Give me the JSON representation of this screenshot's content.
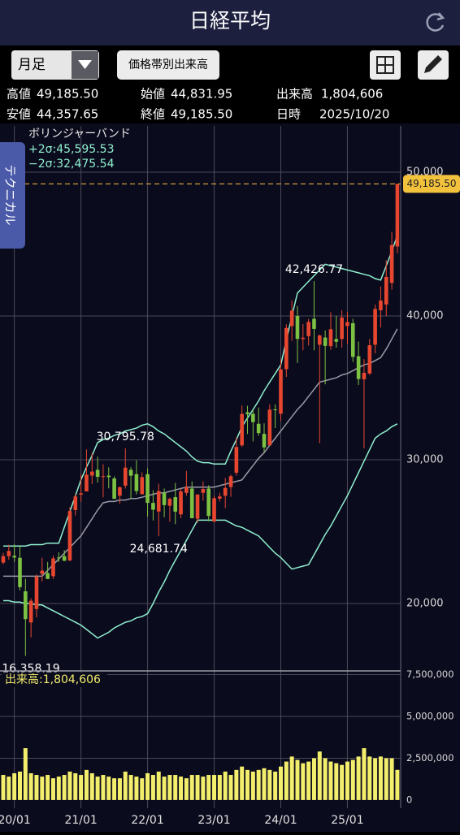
{
  "app": {
    "title": "日経平均",
    "period": "月足",
    "button": "価格帯別出来高",
    "side_tab": "テクニカル"
  },
  "quote": {
    "high_label": "高値",
    "high": "49,185.50",
    "open_label": "始値",
    "open": "44,831.95",
    "volume_label": "出来高",
    "volume": "1,804,606",
    "low_label": "安値",
    "low": "44,357.65",
    "close_label": "終値",
    "close": "49,185.50",
    "date_label": "日時",
    "date": "2025/10/20"
  },
  "chart_data": [
    {
      "type": "candlestick",
      "indicator": "ボリンジャーバンド",
      "up_color": "#e8472f",
      "down_color": "#7cc142",
      "open": [
        22850,
        23300,
        23320,
        23180,
        20850,
        18686,
        19620,
        22062,
        22121,
        21900,
        23200,
        23300,
        23000,
        26500,
        27575,
        27800,
        28900,
        29300,
        28800,
        28900,
        28700,
        27500,
        28200,
        29300,
        29000,
        27600,
        29000,
        27000,
        26400,
        27700,
        26800,
        27400,
        26200,
        27700,
        28000,
        25900,
        27700,
        28000,
        25700,
        27300,
        27500,
        28100,
        29100,
        31000,
        33300,
        33200,
        32500,
        31800,
        31000,
        33500,
        33200,
        36300,
        39300,
        40000,
        38400,
        38600,
        39800,
        38000,
        38500,
        37900,
        38400,
        38400,
        39300,
        39500,
        37200,
        35600,
        36000,
        38000,
        40400,
        40800,
        42300,
        44831.95
      ],
      "high": [
        23520,
        24091,
        24115,
        23995,
        21719,
        20365,
        22030,
        23185,
        22894,
        23338,
        23559,
        23725,
        26706,
        27602,
        28979,
        30714,
        30485,
        30208,
        29685,
        29480,
        28852,
        28139,
        30795.78,
        29489,
        29960,
        29121,
        29388,
        27880,
        28338,
        28000,
        27369,
        28389,
        27993,
        29222,
        28495,
        27587,
        28502,
        28226,
        27500,
        27696,
        28734,
        28969,
        31560,
        33772,
        33753,
        33488,
        33634,
        32533,
        33853,
        33853,
        36984,
        39426,
        41087,
        40697,
        39437,
        39788,
        42426.77,
        38700,
        39000,
        40257,
        40000,
        40398,
        40288,
        39800,
        38220,
        37000,
        38400,
        40800,
        42065,
        43876,
        45852,
        49185.5
      ],
      "low": [
        22730,
        23044,
        22892,
        20916,
        16358.19,
        17646,
        19048,
        21529,
        21710,
        21710,
        22878,
        22948,
        22948,
        26121,
        27073,
        27800,
        28308,
        28419,
        27385,
        28010,
        27272,
        26954,
        28000,
        27293,
        27588,
        27594,
        26044,
        25775,
        24681.74,
        26000,
        25688,
        25520,
        25935,
        27500,
        25937,
        25621,
        27160,
        25718,
        25661,
        27100,
        26632,
        27427,
        28900,
        30900,
        31791,
        31275,
        31674,
        30538,
        31000,
        32205,
        32693,
        35762,
        38271,
        36733,
        37617,
        37950,
        37611,
        31156,
        35247,
        37651,
        37800,
        37800,
        38055,
        36800,
        35200,
        30792,
        35900,
        37400,
        39200,
        40000,
        41835,
        44357.65
      ],
      "close": [
        23294,
        23657,
        23205,
        21143,
        18917,
        20193,
        21877,
        22288,
        21710,
        23139,
        23185,
        22977,
        26433,
        27444,
        27663,
        28966,
        29178,
        28812,
        28860,
        28791,
        27283,
        28089,
        29452,
        28892,
        27821,
        28791,
        27001,
        26526,
        27821,
        26847,
        27279,
        26393,
        27801,
        28091,
        25937,
        27587,
        27968,
        26094,
        27327,
        27445,
        28041,
        28856,
        30887,
        33189,
        33172,
        32619,
        31857,
        30858,
        33486,
        33464,
        36286,
        39166,
        40369,
        38405,
        38487,
        39583,
        39101,
        38647,
        37919,
        39081,
        38208,
        39894,
        39572,
        37155,
        35617,
        36045,
        37965,
        40487,
        41070,
        42718,
        44932,
        49185.5
      ],
      "series": [
        {
          "name": "+2σ:45,595.53",
          "color": "#8ff0cf",
          "values": [
            24000,
            24000,
            24000,
            24000,
            24000,
            24100,
            24100,
            24100,
            24200,
            24200,
            24200,
            25300,
            26400,
            27500,
            28600,
            29500,
            30300,
            31200,
            31400,
            31500,
            31700,
            31800,
            32000,
            32100,
            32200,
            32400,
            32500,
            32300,
            32000,
            31800,
            31500,
            31200,
            30900,
            30600,
            30200,
            29900,
            29800,
            29800,
            29700,
            29700,
            29700,
            30600,
            31400,
            32300,
            32900,
            33500,
            34100,
            34800,
            35400,
            36000,
            36600,
            38300,
            40000,
            41600,
            42000,
            42400,
            42800,
            43200,
            43600,
            43500,
            43400,
            43300,
            43200,
            43100,
            43000,
            42900,
            42800,
            42600,
            42500,
            43500,
            44500,
            45600
          ]
        },
        {
          "color": "#9a9aa6",
          "values": [
            21900,
            21900,
            21900,
            21900,
            21900,
            21900,
            21900,
            21900,
            22300,
            22700,
            23100,
            23500,
            23900,
            24300,
            24700,
            25300,
            25900,
            26500,
            27000,
            27100,
            27100,
            27200,
            27200,
            27300,
            27300,
            27400,
            27500,
            27600,
            27700,
            27700,
            27800,
            27900,
            28000,
            28100,
            28100,
            28100,
            28100,
            28100,
            28100,
            28200,
            28300,
            28400,
            28500,
            28600,
            29100,
            29600,
            30100,
            30500,
            31000,
            31500,
            32000,
            32500,
            33000,
            33500,
            33900,
            34400,
            34900,
            35400,
            35500,
            35600,
            35700,
            35900,
            36000,
            36200,
            36400,
            36600,
            36700,
            36900,
            37100,
            37700,
            38400,
            39100
          ]
        },
        {
          "name": "−2σ:32,475.54",
          "color": "#8ff0cf",
          "values": [
            20200,
            20200,
            20100,
            20100,
            20000,
            20000,
            19900,
            19900,
            19700,
            19500,
            19300,
            19100,
            18900,
            18700,
            18500,
            18200,
            17900,
            17600,
            17800,
            18000,
            18300,
            18500,
            18700,
            18800,
            19000,
            19100,
            19300,
            20000,
            20800,
            21500,
            22300,
            23000,
            23700,
            24400,
            25100,
            25800,
            25800,
            25800,
            25800,
            25800,
            25800,
            25600,
            25400,
            25300,
            25100,
            24900,
            24700,
            24300,
            23900,
            23500,
            23200,
            22800,
            22400,
            22500,
            22600,
            22700,
            23400,
            24100,
            24800,
            25400,
            26100,
            26800,
            27500,
            28300,
            29100,
            29900,
            30700,
            31500,
            31800,
            32000,
            32300,
            32500
          ]
        }
      ],
      "annotations": [
        {
          "value": 42426.77,
          "label": "42,426.77"
        },
        {
          "value": 30795.78,
          "label": "30,795.78"
        },
        {
          "value": 24681.74,
          "label": "24,681.74"
        },
        {
          "value": 16358.19,
          "label": "16,358.19"
        }
      ],
      "last_price": {
        "value": 49185.5,
        "label": "49,185.50"
      },
      "ylim": [
        15370,
        53220
      ],
      "yticks": [
        {
          "value": 20000,
          "label": "20,000"
        },
        {
          "value": 30000,
          "label": "30,000"
        },
        {
          "value": 40000,
          "label": "40,000"
        },
        {
          "value": 50000,
          "label": "50,000"
        }
      ],
      "grid": true
    },
    {
      "type": "bar",
      "title": "出来高:1,804,606",
      "color": "#f3ee6c",
      "categories": [
        null,
        null,
        "20/01",
        null,
        null,
        null,
        null,
        null,
        null,
        null,
        null,
        null,
        null,
        null,
        "21/01",
        null,
        null,
        null,
        null,
        null,
        null,
        null,
        null,
        null,
        null,
        null,
        "22/01",
        null,
        null,
        null,
        null,
        null,
        null,
        null,
        null,
        null,
        null,
        null,
        "23/01",
        null,
        null,
        null,
        null,
        null,
        null,
        null,
        null,
        null,
        null,
        null,
        "24/01",
        null,
        null,
        null,
        null,
        null,
        null,
        null,
        null,
        null,
        null,
        null,
        "25/01",
        null,
        null,
        null,
        null,
        null,
        null,
        null,
        null,
        null
      ],
      "values": [
        1500000,
        1400000,
        1600000,
        1700000,
        3100000,
        1600000,
        1500000,
        1400000,
        1500000,
        1300000,
        1400000,
        1500000,
        1700000,
        1600000,
        1500000,
        1800000,
        1600000,
        1400000,
        1500000,
        1400000,
        1300000,
        1300000,
        1700000,
        1500000,
        1400000,
        1300000,
        1600000,
        1500000,
        1700000,
        1400000,
        1500000,
        1500000,
        1400000,
        1300000,
        1500000,
        1500000,
        1400000,
        1500000,
        1500000,
        1500000,
        1700000,
        1500000,
        1800000,
        2000000,
        1800000,
        1700000,
        1800000,
        1900000,
        1800000,
        1700000,
        2000000,
        2300000,
        2600000,
        2400000,
        2200000,
        2300000,
        2500000,
        2900000,
        2500000,
        2300000,
        2200000,
        2100000,
        2300000,
        2400000,
        2600000,
        3100000,
        2600000,
        2500000,
        2600000,
        2500000,
        2500000,
        1804606
      ],
      "ylim": [
        -490000,
        7720000
      ],
      "yticks": [
        0,
        {
          "value": 2500000,
          "label": "2,500,000"
        },
        {
          "value": 5000000,
          "label": "5,000,000"
        },
        {
          "value": 7500000,
          "label": "7,500,000"
        }
      ],
      "grid": true
    }
  ]
}
